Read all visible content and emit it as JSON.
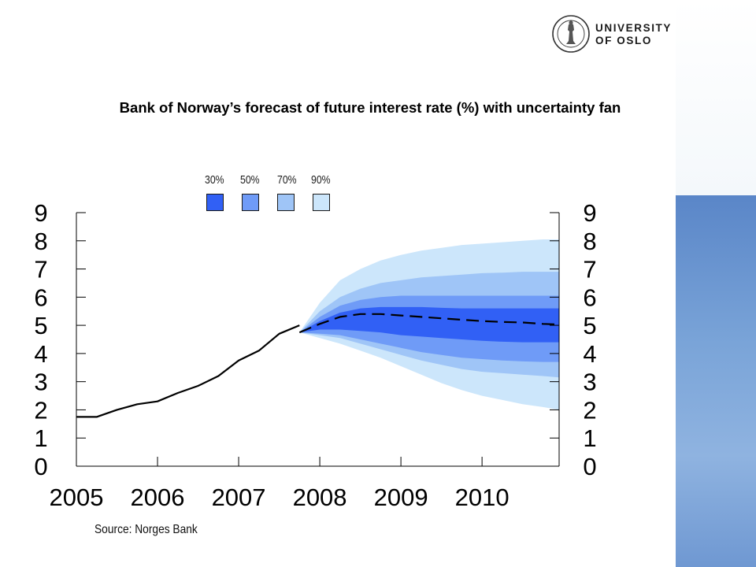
{
  "header": {
    "university_name_line1": "UNIVERSITY",
    "university_name_line2": "OF OSLO"
  },
  "title": "Bank of Norway’s forecast of future interest rate (%) with uncertainty fan",
  "source": "Source: Norges Bank",
  "legend": {
    "items": [
      {
        "label": "30%",
        "color": "#3160f5"
      },
      {
        "label": "50%",
        "color": "#6f9bf7"
      },
      {
        "label": "70%",
        "color": "#9fc5f7"
      },
      {
        "label": "90%",
        "color": "#cce6fb"
      }
    ]
  },
  "colors": {
    "band_30": "#3160f5",
    "band_50": "#6f9bf7",
    "band_70": "#9fc5f7",
    "band_90": "#cce6fb",
    "line": "#000000",
    "right_panel": "#7aa4d8"
  },
  "chart_data": {
    "type": "area",
    "title": "Bank of Norway’s forecast of future interest rate (%) with uncertainty fan",
    "xlabel": "",
    "ylabel": "",
    "xlim": [
      2005.0,
      2010.95
    ],
    "ylim": [
      0,
      9
    ],
    "x_ticks": [
      "2005",
      "2006",
      "2007",
      "2008",
      "2009",
      "2010"
    ],
    "y_ticks_left": [
      "0",
      "1",
      "2",
      "3",
      "4",
      "5",
      "6",
      "7",
      "8",
      "9"
    ],
    "y_ticks_right": [
      "0",
      "1",
      "2",
      "3",
      "4",
      "5",
      "6",
      "7",
      "8",
      "9"
    ],
    "grid": false,
    "legend_position": "top-center",
    "series": [
      {
        "name": "historical",
        "style": "solid",
        "x": [
          2005.0,
          2005.25,
          2005.5,
          2005.75,
          2006.0,
          2006.25,
          2006.5,
          2006.75,
          2007.0,
          2007.25,
          2007.5,
          2007.75
        ],
        "y": [
          1.75,
          1.75,
          2.0,
          2.2,
          2.3,
          2.6,
          2.85,
          3.2,
          3.75,
          4.1,
          4.7,
          5.0
        ]
      },
      {
        "name": "forecast",
        "style": "dashed",
        "x": [
          2007.75,
          2008.0,
          2008.25,
          2008.5,
          2008.75,
          2009.0,
          2009.25,
          2009.5,
          2009.75,
          2010.0,
          2010.25,
          2010.5,
          2010.75,
          2010.95
        ],
        "y": [
          4.75,
          5.05,
          5.3,
          5.4,
          5.4,
          5.35,
          5.3,
          5.25,
          5.2,
          5.15,
          5.12,
          5.1,
          5.05,
          5.03
        ]
      }
    ],
    "fan": {
      "x": [
        2007.75,
        2008.0,
        2008.25,
        2008.5,
        2008.75,
        2009.0,
        2009.25,
        2009.5,
        2009.75,
        2010.0,
        2010.25,
        2010.5,
        2010.75,
        2010.95
      ],
      "bands": [
        {
          "name": "90%",
          "upper": [
            4.75,
            5.8,
            6.6,
            7.0,
            7.3,
            7.5,
            7.65,
            7.75,
            7.85,
            7.9,
            7.95,
            8.0,
            8.05,
            8.05
          ],
          "lower": [
            4.75,
            4.55,
            4.35,
            4.1,
            3.85,
            3.55,
            3.25,
            2.95,
            2.7,
            2.5,
            2.35,
            2.2,
            2.1,
            2.0
          ]
        },
        {
          "name": "70%",
          "upper": [
            4.75,
            5.5,
            6.0,
            6.3,
            6.5,
            6.6,
            6.7,
            6.75,
            6.8,
            6.85,
            6.87,
            6.9,
            6.9,
            6.9
          ],
          "lower": [
            4.75,
            4.65,
            4.55,
            4.35,
            4.15,
            3.95,
            3.75,
            3.6,
            3.45,
            3.35,
            3.3,
            3.25,
            3.2,
            3.15
          ]
        },
        {
          "name": "50%",
          "upper": [
            4.75,
            5.3,
            5.7,
            5.9,
            6.0,
            6.05,
            6.05,
            6.05,
            6.05,
            6.05,
            6.05,
            6.05,
            6.05,
            6.05
          ],
          "lower": [
            4.75,
            4.7,
            4.65,
            4.5,
            4.35,
            4.2,
            4.05,
            3.95,
            3.85,
            3.8,
            3.75,
            3.72,
            3.7,
            3.7
          ]
        },
        {
          "name": "30%",
          "upper": [
            4.75,
            5.15,
            5.45,
            5.6,
            5.65,
            5.65,
            5.65,
            5.62,
            5.6,
            5.6,
            5.6,
            5.6,
            5.6,
            5.6
          ],
          "lower": [
            4.75,
            4.85,
            4.85,
            4.8,
            4.75,
            4.65,
            4.6,
            4.55,
            4.5,
            4.45,
            4.42,
            4.4,
            4.4,
            4.4
          ]
        }
      ]
    }
  }
}
